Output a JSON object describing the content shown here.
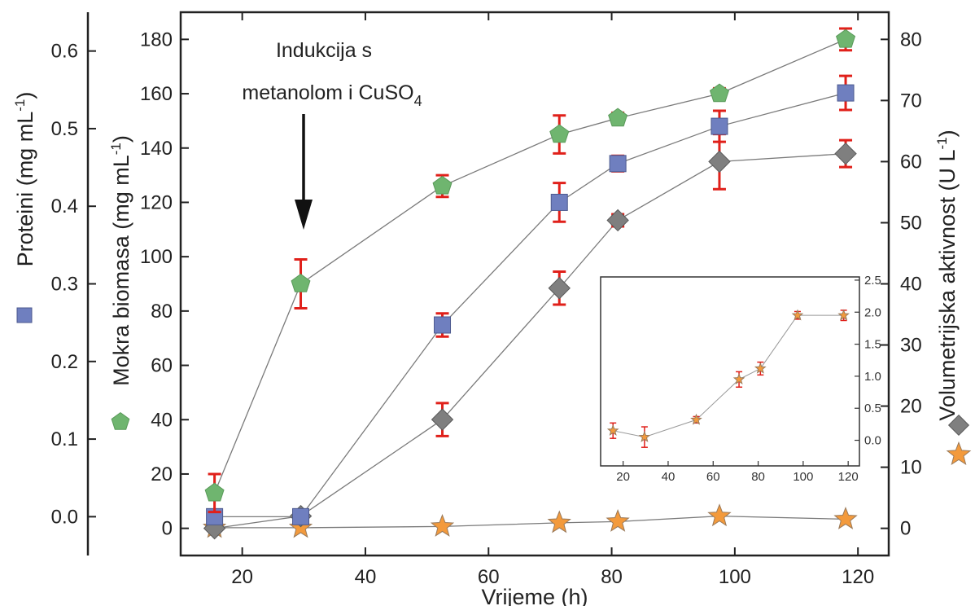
{
  "chart_data": [
    {
      "type": "scatter",
      "xlabel": "Vrijeme (h)",
      "xlim": [
        10,
        125
      ],
      "xticks": [
        "20",
        "40",
        "60",
        "80",
        "100",
        "120"
      ],
      "axes": {
        "proteini": {
          "label": "Proteini (mg mL-1)",
          "ylim": [
            -0.05,
            0.65
          ],
          "ticks": [
            "0.0",
            "0.1",
            "0.2",
            "0.3",
            "0.4",
            "0.5",
            "0.6"
          ],
          "values": [
            0.0,
            0.1,
            0.2,
            0.3,
            0.4,
            0.5,
            0.6
          ]
        },
        "biomasa": {
          "label": "Mokra biomasa (mg mL-1)",
          "ylim": [
            -10,
            190
          ],
          "ticks": [
            "0",
            "20",
            "40",
            "60",
            "80",
            "100",
            "120",
            "140",
            "160",
            "180"
          ],
          "values": [
            0,
            20,
            40,
            60,
            80,
            100,
            120,
            140,
            160,
            180
          ]
        },
        "aktivnost": {
          "label": "Volumetrijska aktivnost (U L-1)",
          "ylim": [
            -4.444,
            84.444
          ],
          "ticks": [
            "0",
            "10",
            "20",
            "30",
            "40",
            "50",
            "60",
            "70",
            "80"
          ],
          "values": [
            0,
            10,
            20,
            30,
            40,
            50,
            60,
            70,
            80
          ]
        }
      },
      "series": [
        {
          "marker": "pentagon",
          "color": "#6fb56f",
          "axis": "biomasa",
          "x": [
            15.5,
            29.5,
            52.5,
            71.5,
            81,
            97.5,
            118
          ],
          "y": [
            13,
            90,
            126,
            145,
            151,
            160,
            180
          ],
          "err": [
            7,
            9,
            4,
            7,
            2,
            2,
            4
          ]
        },
        {
          "marker": "square",
          "color": "#6f7fbf",
          "axis": "proteini",
          "x": [
            15.5,
            29.5,
            52.5,
            71.5,
            81,
            97.5,
            118
          ],
          "y": [
            0.0,
            0.0,
            0.247,
            0.405,
            0.455,
            0.503,
            0.546
          ],
          "err": [
            0,
            0,
            0.015,
            0.025,
            0.01,
            0.02,
            0.022
          ]
        },
        {
          "marker": "diamond",
          "color": "#7f7f7f",
          "axis": "aktivnost",
          "x": [
            15.5,
            29.5,
            52.5,
            71.5,
            81,
            97.5,
            118
          ],
          "y": [
            0,
            2,
            17.8,
            39.3,
            50.4,
            60,
            61.3
          ],
          "err": [
            0,
            0,
            2.7,
            2.7,
            1,
            4.5,
            2.2
          ]
        },
        {
          "marker": "star",
          "color": "#f39a3c",
          "axis": "aktivnost",
          "x": [
            15.5,
            29.5,
            52.5,
            71.5,
            81,
            97.5,
            118
          ],
          "y": [
            0.1,
            0.1,
            0.3,
            0.9,
            1.1,
            2.0,
            1.5
          ],
          "err": [
            0,
            0,
            0,
            0,
            0,
            0,
            0
          ]
        }
      ],
      "annotation": {
        "line1": "Indukcija s",
        "line2": "metanolom i CuSO",
        "subscript": "4"
      }
    },
    {
      "type": "line",
      "xlim": [
        10,
        125
      ],
      "ylim": [
        -0.4,
        2.55
      ],
      "xticks": [
        "20",
        "40",
        "60",
        "80",
        "100",
        "120"
      ],
      "yticks": [
        "0.0",
        "0.5",
        "1.0",
        "1.5",
        "2.0",
        "2.5"
      ],
      "x": [
        15.5,
        29.5,
        52.5,
        71.5,
        81,
        97.5,
        118
      ],
      "y": [
        0.15,
        0.05,
        0.32,
        0.95,
        1.12,
        1.95,
        1.95
      ],
      "err": [
        0.12,
        0.16,
        0.05,
        0.12,
        0.1,
        0.06,
        0.08
      ]
    }
  ]
}
